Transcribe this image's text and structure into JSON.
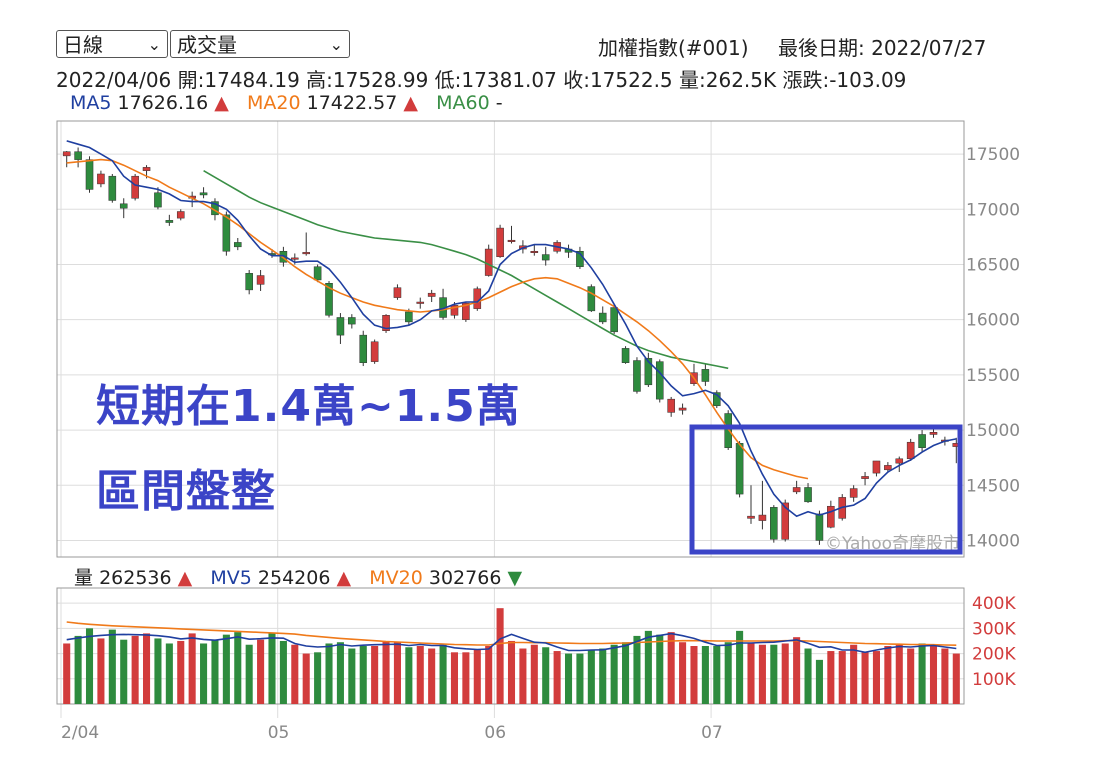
{
  "controls": {
    "period": "日線",
    "indicator": "成交量"
  },
  "header": {
    "index_name": "加權指數(#001)",
    "last_date": "最後日期: 2022/07/27",
    "quote": "2022/04/06  開:17484.19  高:17528.99  低:17381.07  收:17522.5  量:262.5K  漲跌:-103.09"
  },
  "ma": {
    "ma5_label": "MA5",
    "ma5_value": "17626.16",
    "ma5_arrow": "▲",
    "ma20_label": "MA20",
    "ma20_value": "17422.57",
    "ma20_arrow": "▲",
    "ma60_label": "MA60",
    "ma60_value": "-"
  },
  "volume_header": {
    "vol_label": "量",
    "vol_value": "262536",
    "vol_arrow": "▲",
    "mv5_label": "MV5",
    "mv5_value": "254206",
    "mv5_arrow": "▲",
    "mv20_label": "MV20",
    "mv20_value": "302766",
    "mv20_arrow": "▼"
  },
  "annotation": {
    "line1": "短期在1.4萬~1.5萬",
    "line2": "區間盤整"
  },
  "watermark": "©Yahoo奇摩股市",
  "colors": {
    "up": "#d23c3c",
    "down": "#2e8b3e",
    "ma5": "#1f3fa0",
    "ma20": "#f07a1a",
    "ma60": "#3a8f46",
    "annotation": "#3b44c7",
    "grid": "#dddddd"
  },
  "chart_data": {
    "type": "candlestick",
    "price_axis": {
      "ticks": [
        14000,
        14500,
        15000,
        15500,
        16000,
        16500,
        17000,
        17500
      ],
      "range": [
        13850,
        17800
      ]
    },
    "volume_axis": {
      "ticks": [
        "100K",
        "200K",
        "300K",
        "400K"
      ],
      "range": [
        0,
        460
      ]
    },
    "x_labels": [
      "2/04",
      "05",
      "06",
      "07"
    ],
    "x_label_index": [
      0,
      19,
      38,
      57
    ],
    "candles": [
      [
        17484,
        17528,
        17381,
        17522
      ],
      [
        17522,
        17560,
        17380,
        17450
      ],
      [
        17450,
        17480,
        17150,
        17180
      ],
      [
        17230,
        17350,
        17200,
        17320
      ],
      [
        17300,
        17320,
        17060,
        17080
      ],
      [
        17050,
        17100,
        16920,
        17010
      ],
      [
        17100,
        17320,
        17080,
        17300
      ],
      [
        17350,
        17400,
        17280,
        17380
      ],
      [
        17150,
        17200,
        17000,
        17020
      ],
      [
        16900,
        16950,
        16850,
        16880
      ],
      [
        16920,
        17000,
        16900,
        16980
      ],
      [
        17100,
        17160,
        17020,
        17120
      ],
      [
        17150,
        17200,
        17100,
        17130
      ],
      [
        17070,
        17100,
        16900,
        16950
      ],
      [
        16950,
        16980,
        16580,
        16620
      ],
      [
        16700,
        16740,
        16630,
        16660
      ],
      [
        16420,
        16450,
        16230,
        16270
      ],
      [
        16320,
        16450,
        16260,
        16400
      ],
      [
        16600,
        16640,
        16560,
        16590
      ],
      [
        16620,
        16660,
        16480,
        16520
      ],
      [
        16560,
        16600,
        16500,
        16560
      ],
      [
        16600,
        16790,
        16580,
        16610
      ],
      [
        16480,
        16500,
        16340,
        16360
      ],
      [
        16330,
        16350,
        16020,
        16040
      ],
      [
        16020,
        16060,
        15780,
        15860
      ],
      [
        16020,
        16050,
        15920,
        15960
      ],
      [
        15860,
        15900,
        15580,
        15610
      ],
      [
        15620,
        15820,
        15600,
        15800
      ],
      [
        15900,
        16050,
        15880,
        16040
      ],
      [
        16200,
        16320,
        16180,
        16290
      ],
      [
        16070,
        16100,
        15950,
        15980
      ],
      [
        16160,
        16200,
        16100,
        16160
      ],
      [
        16210,
        16270,
        16160,
        16240
      ],
      [
        16200,
        16280,
        16000,
        16020
      ],
      [
        16040,
        16160,
        16010,
        16130
      ],
      [
        16000,
        16160,
        15980,
        16150
      ],
      [
        16100,
        16300,
        16080,
        16280
      ],
      [
        16400,
        16680,
        16390,
        16640
      ],
      [
        16570,
        16860,
        16560,
        16830
      ],
      [
        16720,
        16850,
        16690,
        16720
      ],
      [
        16640,
        16720,
        16600,
        16670
      ],
      [
        16620,
        16680,
        16580,
        16620
      ],
      [
        16590,
        16660,
        16490,
        16540
      ],
      [
        16620,
        16720,
        16600,
        16700
      ],
      [
        16640,
        16680,
        16560,
        16610
      ],
      [
        16620,
        16660,
        16460,
        16480
      ],
      [
        16300,
        16320,
        16070,
        16080
      ],
      [
        16060,
        16120,
        15960,
        15980
      ],
      [
        16110,
        16140,
        15870,
        15890
      ],
      [
        15740,
        15760,
        15600,
        15610
      ],
      [
        15630,
        15660,
        15330,
        15350
      ],
      [
        15650,
        15700,
        15390,
        15410
      ],
      [
        15620,
        15640,
        15250,
        15280
      ],
      [
        15160,
        15300,
        15120,
        15280
      ],
      [
        15180,
        15240,
        15140,
        15200
      ],
      [
        15420,
        15600,
        15400,
        15520
      ],
      [
        15550,
        15600,
        15400,
        15440
      ],
      [
        15340,
        15360,
        15200,
        15220
      ],
      [
        15150,
        15180,
        14820,
        14840
      ],
      [
        14880,
        14900,
        14390,
        14420
      ],
      [
        14200,
        14500,
        14150,
        14220
      ],
      [
        14180,
        14540,
        14100,
        14230
      ],
      [
        14300,
        14320,
        13980,
        14010
      ],
      [
        14010,
        14370,
        13990,
        14340
      ],
      [
        14440,
        14540,
        14420,
        14480
      ],
      [
        14480,
        14520,
        14340,
        14350
      ],
      [
        14240,
        14270,
        13960,
        14000
      ],
      [
        14120,
        14360,
        14110,
        14310
      ],
      [
        14200,
        14420,
        14180,
        14390
      ],
      [
        14390,
        14500,
        14350,
        14470
      ],
      [
        14560,
        14620,
        14500,
        14580
      ],
      [
        14610,
        14720,
        14580,
        14720
      ],
      [
        14640,
        14710,
        14620,
        14680
      ],
      [
        14700,
        14760,
        14620,
        14740
      ],
      [
        14740,
        14920,
        14720,
        14890
      ],
      [
        14960,
        15000,
        14800,
        14840
      ],
      [
        14960,
        15010,
        14930,
        14980
      ],
      [
        14900,
        14940,
        14860,
        14910
      ],
      [
        14850,
        14930,
        14700,
        14880
      ]
    ],
    "volume": [
      240,
      270,
      300,
      260,
      295,
      255,
      270,
      280,
      260,
      240,
      250,
      280,
      240,
      255,
      275,
      285,
      235,
      255,
      280,
      250,
      235,
      200,
      205,
      240,
      245,
      220,
      230,
      230,
      250,
      245,
      225,
      230,
      220,
      235,
      205,
      205,
      215,
      230,
      380,
      250,
      220,
      235,
      225,
      210,
      200,
      200,
      215,
      220,
      235,
      245,
      270,
      290,
      275,
      285,
      245,
      230,
      230,
      230,
      245,
      290,
      240,
      235,
      235,
      240,
      265,
      220,
      175,
      210,
      210,
      235,
      205,
      210,
      230,
      235,
      220,
      240,
      235,
      220,
      200
    ],
    "mv5": [
      255,
      262,
      268,
      272,
      275,
      276,
      275,
      274,
      271,
      266,
      258,
      262,
      256,
      253,
      259,
      266,
      257,
      259,
      262,
      261,
      240,
      230,
      226,
      228,
      236,
      230,
      233,
      235,
      236,
      237,
      232,
      236,
      232,
      232,
      223,
      219,
      216,
      218,
      258,
      276,
      260,
      245,
      242,
      226,
      212,
      212,
      214,
      215,
      223,
      231,
      248,
      265,
      272,
      279,
      271,
      260,
      245,
      232,
      233,
      242,
      242,
      244,
      245,
      250,
      254,
      241,
      225,
      227,
      214,
      214,
      205,
      214,
      222,
      228,
      226,
      230,
      232,
      226,
      220
    ],
    "mv20": [
      325,
      320,
      316,
      313,
      310,
      308,
      306,
      304,
      302,
      300,
      298,
      296,
      294,
      292,
      290,
      288,
      286,
      284,
      282,
      280,
      277,
      272,
      268,
      264,
      260,
      257,
      254,
      251,
      248,
      246,
      244,
      242,
      240,
      238,
      236,
      235,
      234,
      234,
      240,
      244,
      244,
      243,
      243,
      242,
      241,
      240,
      240,
      240,
      241,
      242,
      244,
      246,
      248,
      250,
      251,
      251,
      251,
      250,
      250,
      250,
      250,
      250,
      250,
      251,
      251,
      250,
      248,
      246,
      244,
      242,
      240,
      239,
      238,
      237,
      236,
      236,
      235,
      234,
      233
    ],
    "ma5": [
      17620,
      17590,
      17560,
      17500,
      17440,
      17300,
      17220,
      17200,
      17180,
      17140,
      17080,
      17070,
      17070,
      17050,
      17000,
      16900,
      16760,
      16640,
      16580,
      16580,
      16520,
      16530,
      16530,
      16460,
      16340,
      16200,
      16050,
      15950,
      15920,
      15930,
      15950,
      16000,
      16080,
      16100,
      16140,
      16160,
      16160,
      16260,
      16500,
      16600,
      16650,
      16680,
      16680,
      16660,
      16640,
      16600,
      16470,
      16320,
      16140,
      15960,
      15760,
      15620,
      15520,
      15400,
      15310,
      15330,
      15360,
      15320,
      15220,
      15060,
      14810,
      14600,
      14420,
      14300,
      14220,
      14260,
      14230,
      14260,
      14300,
      14320,
      14380,
      14520,
      14620,
      14680,
      14730,
      14800,
      14860,
      14900,
      14920
    ],
    "ma20": [
      17420,
      17430,
      17440,
      17450,
      17440,
      17400,
      17350,
      17300,
      17260,
      17200,
      17150,
      17100,
      17050,
      16990,
      16930,
      16860,
      16780,
      16700,
      16630,
      16560,
      16480,
      16410,
      16350,
      16290,
      16240,
      16200,
      16160,
      16130,
      16110,
      16090,
      16080,
      16070,
      16080,
      16090,
      16110,
      16130,
      16160,
      16200,
      16250,
      16300,
      16340,
      16370,
      16380,
      16370,
      16330,
      16290,
      16240,
      16180,
      16120,
      16050,
      15980,
      15900,
      15810,
      15710,
      15600,
      15470,
      15320,
      15160,
      15010,
      14870,
      14750,
      14680,
      14640,
      14610,
      14580,
      14560
    ],
    "ma20_start": 0,
    "ma60": [
      17350,
      17290,
      17230,
      17170,
      17110,
      17060,
      17020,
      16980,
      16940,
      16900,
      16860,
      16830,
      16800,
      16780,
      16760,
      16740,
      16730,
      16720,
      16710,
      16700,
      16680,
      16650,
      16620,
      16590,
      16550,
      16500,
      16450,
      16400,
      16340,
      16280,
      16220,
      16160,
      16100,
      16040,
      15980,
      15920,
      15860,
      15810,
      15760,
      15720,
      15690,
      15660,
      15640,
      15620,
      15600,
      15580,
      15560
    ],
    "ma60_start": 12
  }
}
